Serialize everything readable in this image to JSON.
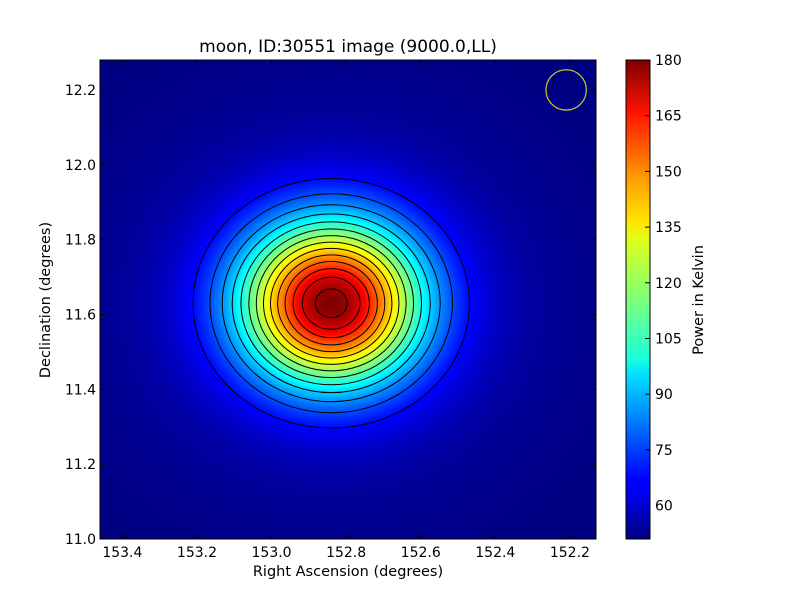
{
  "chart_data": {
    "type": "heatmap",
    "title": "moon, ID:30551 image (9000.0,LL)",
    "xlabel": "Right Ascension (degrees)",
    "ylabel": "Declination (degrees)",
    "colorbar_label": "Power in Kelvin",
    "colormap": "jet",
    "xlim": [
      153.46,
      152.13
    ],
    "ylim": [
      11.0,
      12.28
    ],
    "x_ticks": [
      153.4,
      153.2,
      153.0,
      152.8,
      152.6,
      152.4,
      152.2
    ],
    "x_tick_labels": [
      "153.4",
      "153.2",
      "153.0",
      "152.8",
      "152.6",
      "152.4",
      "152.2"
    ],
    "y_ticks": [
      11.0,
      11.2,
      11.4,
      11.6,
      11.8,
      12.0,
      12.2
    ],
    "y_tick_labels": [
      "11.0",
      "11.2",
      "11.4",
      "11.6",
      "11.8",
      "12.0",
      "12.2"
    ],
    "colorbar_range": [
      51,
      180
    ],
    "colorbar_ticks": [
      60,
      75,
      90,
      105,
      120,
      135,
      150,
      165,
      180
    ],
    "colorbar_tick_labels": [
      "60",
      "75",
      "90",
      "105",
      "120",
      "135",
      "150",
      "165",
      "180"
    ],
    "source": {
      "center_ra": 152.84,
      "center_dec": 11.63,
      "peak_kelvin": 180,
      "background_kelvin": 51,
      "fwhm_ra_deg": 0.4,
      "fwhm_dec_deg": 0.36
    },
    "beam_marker": {
      "ra": 152.21,
      "dec": 12.2,
      "radius_deg": 0.055,
      "color": "#c8c81e"
    },
    "contour_color": "#000000"
  }
}
